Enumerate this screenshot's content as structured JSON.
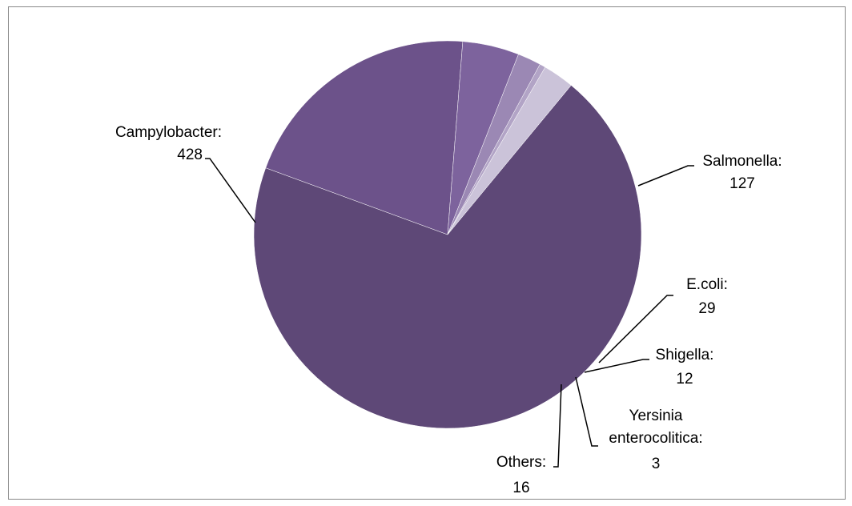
{
  "chart_data": {
    "type": "pie",
    "slices": [
      {
        "category": "Campylobacter",
        "value": 428,
        "label_line1": "Campylobacter:",
        "label_line2": "428",
        "color": "#5e4877"
      },
      {
        "category": "Salmonella",
        "value": 127,
        "label_line1": "Salmonella:",
        "label_line2": "127",
        "color": "#6c528a"
      },
      {
        "category": "E.coli",
        "value": 29,
        "label_line1": "E.coli:",
        "label_line2": "29",
        "color": "#7d639d"
      },
      {
        "category": "Shigella",
        "value": 12,
        "label_line1": "Shigella:",
        "label_line2": "12",
        "color": "#9b88b4"
      },
      {
        "category": "Yersinia enterocolitica",
        "value": 3,
        "label_line1": "Yersinia",
        "label_line2": "enterocolitica:",
        "label_line3": "3",
        "color": "#b2a4c6"
      },
      {
        "category": "Others",
        "value": 16,
        "label_line1": "Others:",
        "label_line2": "16",
        "color": "#cbc3d9"
      }
    ],
    "legend": "none",
    "data_labels": "outside with leader lines"
  }
}
